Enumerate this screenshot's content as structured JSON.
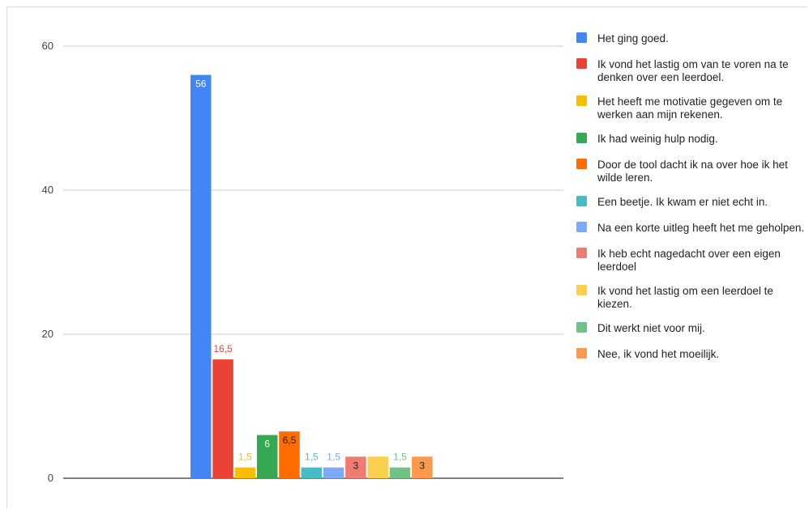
{
  "chart_data": {
    "type": "bar",
    "title": "",
    "xlabel": "",
    "ylabel": "",
    "ylim": [
      0,
      60
    ],
    "yticks": [
      0,
      20,
      40,
      60
    ],
    "grid": true,
    "legend_position": "right",
    "series": [
      {
        "name": "Het ging goed.",
        "value": 56,
        "label": "56",
        "color": "#4285f4",
        "label_color": "#ffffff",
        "label_inside": true
      },
      {
        "name": "Ik vond het lastig om van te voren na te denken over een leerdoel.",
        "value": 16.5,
        "label": "16,5",
        "color": "#ea4335",
        "label_color": "#ea4335",
        "label_inside": false
      },
      {
        "name": "Het heeft me motivatie gegeven om te werken aan mijn rekenen.",
        "value": 1.5,
        "label": "1,5",
        "color": "#fbbc04",
        "label_color": "#fbbc04",
        "label_inside": false
      },
      {
        "name": "Ik had weinig hulp nodig.",
        "value": 6,
        "label": "6",
        "color": "#34a853",
        "label_color": "#ffffff",
        "label_inside": true
      },
      {
        "name": "Door de tool dacht ik na over hoe ik het wilde leren.",
        "value": 6.5,
        "label": "6,5",
        "color": "#ff6d01",
        "label_color": "#222222",
        "label_inside": true
      },
      {
        "name": "Een beetje. Ik kwam er niet echt in.",
        "value": 1.5,
        "label": "1,5",
        "color": "#46bdc6",
        "label_color": "#46bdc6",
        "label_inside": false
      },
      {
        "name": "Na een korte uitleg heeft het me geholpen.",
        "value": 1.5,
        "label": "1,5",
        "color": "#7baaf7",
        "label_color": "#7baaf7",
        "label_inside": false
      },
      {
        "name": "Ik heb echt nagedacht over een eigen leerdoel",
        "value": 3,
        "label": "3",
        "color": "#f07b72",
        "label_color": "#222222",
        "label_inside": true
      },
      {
        "name": "Ik vond het lastig om een leerdoel te kiezen.",
        "value": 3,
        "label": "",
        "color": "#fcd04f",
        "label_color": "#222222",
        "label_inside": true
      },
      {
        "name": "Dit werkt niet voor mij.",
        "value": 1.5,
        "label": "1,5",
        "color": "#71c287",
        "label_color": "#71c287",
        "label_inside": false
      },
      {
        "name": "Nee, ik vond het moeilijk.",
        "value": 3,
        "label": "3",
        "color": "#ff994d",
        "label_color": "#222222",
        "label_inside": true
      }
    ]
  }
}
